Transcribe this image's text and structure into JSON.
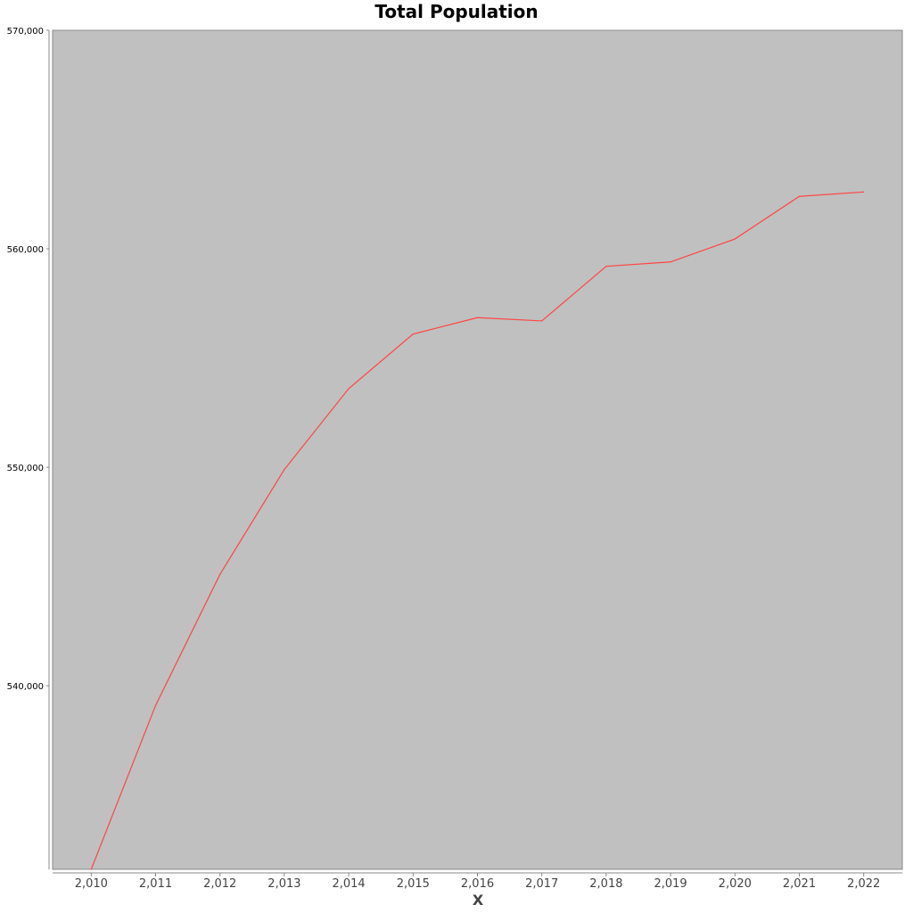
{
  "chart_data": {
    "type": "line",
    "title": "Total Population",
    "xlabel": "X",
    "ylabel": "",
    "x": [
      2010,
      2011,
      2012,
      2013,
      2014,
      2015,
      2016,
      2017,
      2018,
      2019,
      2020,
      2021,
      2022
    ],
    "x_tick_labels": [
      "2,010",
      "2,011",
      "2,012",
      "2,013",
      "2,014",
      "2,015",
      "2,016",
      "2,017",
      "2,018",
      "2,019",
      "2,020",
      "2,021",
      "2,022"
    ],
    "series": [
      {
        "values": [
          531600,
          539100,
          545100,
          549900,
          553600,
          556100,
          556850,
          556700,
          559200,
          559400,
          560450,
          562400,
          562600
        ],
        "color": "#ff4444"
      }
    ],
    "ylim": [
      531600,
      570000
    ],
    "y_ticks": [
      540000,
      550000,
      560000,
      570000
    ],
    "y_tick_labels": [
      "540,000",
      "550,000",
      "560,000",
      "570,000"
    ],
    "xlim": [
      2009.4,
      2022.6
    ],
    "grid": false,
    "legend": "none",
    "plot_background": "#c0c0c0"
  }
}
